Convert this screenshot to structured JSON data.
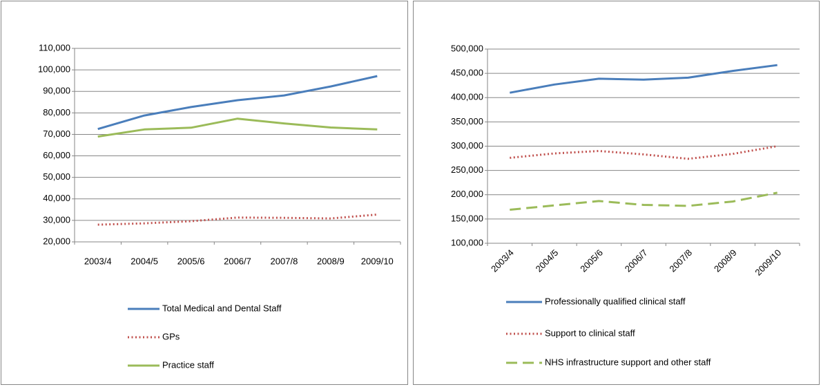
{
  "chart_data": [
    {
      "type": "line",
      "categories": [
        "2003/4",
        "2004/5",
        "2005/6",
        "2006/7",
        "2007/8",
        "2008/9",
        "2009/10"
      ],
      "ylim": [
        20000,
        110000
      ],
      "yticks": [
        {
          "value": 20000,
          "label": "20,000"
        },
        {
          "value": 30000,
          "label": "30,000"
        },
        {
          "value": 40000,
          "label": "40,000"
        },
        {
          "value": 50000,
          "label": "50,000"
        },
        {
          "value": 60000,
          "label": "60,000"
        },
        {
          "value": 70000,
          "label": "70,000"
        },
        {
          "value": 80000,
          "label": "80,000"
        },
        {
          "value": 90000,
          "label": "90,000"
        },
        {
          "value": 100000,
          "label": "100,000"
        },
        {
          "value": 110000,
          "label": "110,000"
        }
      ],
      "grid": true,
      "legend": "bottom",
      "series": [
        {
          "name": "Total Medical and Dental Staff",
          "color": "#4a7ebb",
          "dash": "solid",
          "values": [
            72500,
            78800,
            82700,
            85900,
            88100,
            92300,
            97100
          ]
        },
        {
          "name": "GPs",
          "color": "#c0504d",
          "dash": "dotted",
          "values": [
            28000,
            28600,
            29600,
            31300,
            31200,
            30900,
            32700
          ]
        },
        {
          "name": "Practice staff",
          "color": "#9bbb59",
          "dash": "solid",
          "values": [
            69000,
            72300,
            73100,
            77300,
            75100,
            73200,
            72300
          ]
        }
      ]
    },
    {
      "type": "line",
      "categories": [
        "2003/4",
        "2004/5",
        "2005/6",
        "2006/7",
        "2007/8",
        "2008/9",
        "2009/10"
      ],
      "ylim": [
        100000,
        500000
      ],
      "yticks": [
        {
          "value": 100000,
          "label": "100,000"
        },
        {
          "value": 150000,
          "label": "150,000"
        },
        {
          "value": 200000,
          "label": "200,000"
        },
        {
          "value": 250000,
          "label": "250,000"
        },
        {
          "value": 300000,
          "label": "300,000"
        },
        {
          "value": 350000,
          "label": "350,000"
        },
        {
          "value": 400000,
          "label": "400,000"
        },
        {
          "value": 450000,
          "label": "450,000"
        },
        {
          "value": 500000,
          "label": "500,000"
        }
      ],
      "grid": true,
      "legend": "bottom",
      "series": [
        {
          "name": "Professionally qualified clinical staff",
          "color": "#4a7ebb",
          "dash": "solid",
          "values": [
            410000,
            427000,
            439000,
            437000,
            441000,
            455000,
            467000
          ]
        },
        {
          "name": "Support to clinical staff",
          "color": "#c0504d",
          "dash": "dotted",
          "values": [
            276000,
            285000,
            290000,
            283000,
            274000,
            284000,
            300000
          ]
        },
        {
          "name": "NHS infrastructure support and other staff",
          "color": "#9bbb59",
          "dash": "dashed",
          "values": [
            169000,
            178000,
            187000,
            179000,
            177000,
            186000,
            204000
          ]
        }
      ]
    }
  ]
}
